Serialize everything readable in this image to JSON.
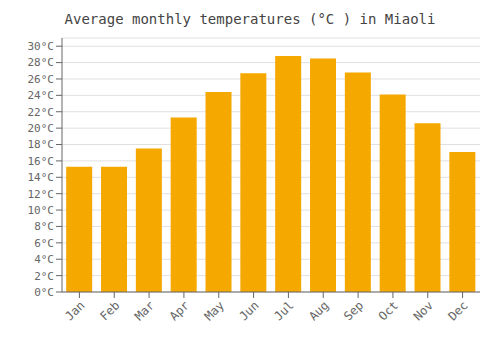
{
  "chart_data": {
    "type": "bar",
    "title": "Average monthly temperatures (°C ) in Miaoli",
    "categories": [
      "Jan",
      "Feb",
      "Mar",
      "Apr",
      "May",
      "Jun",
      "Jul",
      "Aug",
      "Sep",
      "Oct",
      "Nov",
      "Dec"
    ],
    "values": [
      15.3,
      15.3,
      17.5,
      21.3,
      24.4,
      26.7,
      28.8,
      28.5,
      26.8,
      24.1,
      20.6,
      17.1
    ],
    "color": "#F5A800",
    "ylim": [
      0,
      31
    ],
    "yticks": [
      {
        "value": 0,
        "label": "0°C"
      },
      {
        "value": 2,
        "label": "2°C"
      },
      {
        "value": 4,
        "label": "4°C"
      },
      {
        "value": 6,
        "label": "6°C"
      },
      {
        "value": 8,
        "label": "8°C"
      },
      {
        "value": 10,
        "label": "10°C"
      },
      {
        "value": 12,
        "label": "12°C"
      },
      {
        "value": 14,
        "label": "14°C"
      },
      {
        "value": 16,
        "label": "16°C"
      },
      {
        "value": 18,
        "label": "18°C"
      },
      {
        "value": 20,
        "label": "20°C"
      },
      {
        "value": 22,
        "label": "22°C"
      },
      {
        "value": 24,
        "label": "24°C"
      },
      {
        "value": 26,
        "label": "26°C"
      },
      {
        "value": 28,
        "label": "28°C"
      },
      {
        "value": 30,
        "label": "30°C"
      }
    ],
    "grid": true
  }
}
